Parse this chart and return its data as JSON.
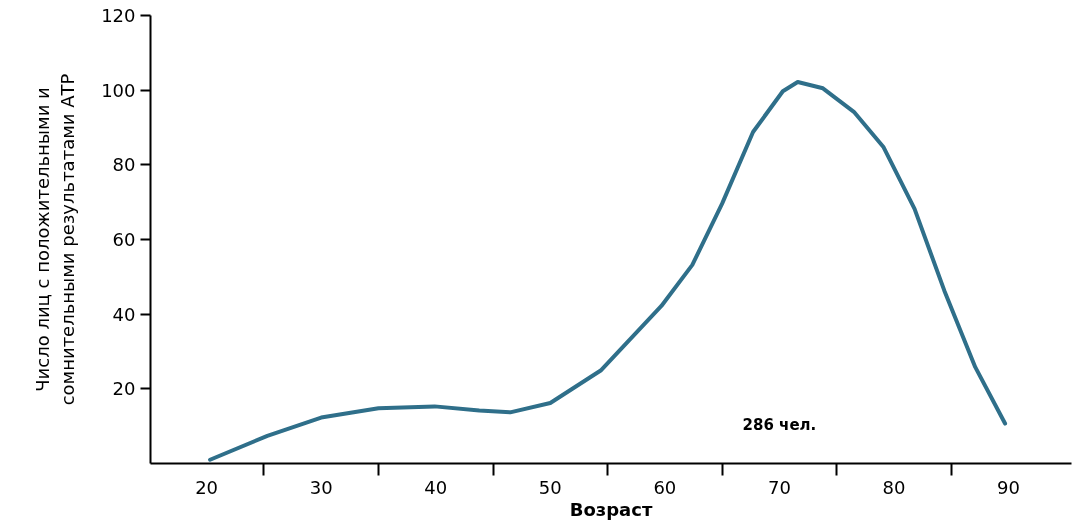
{
  "chart_data": {
    "type": "line",
    "xlabel": "Возраст",
    "ylabel": "Число лиц с положительными и\nсомнительными результатами АТР",
    "x": [
      20.3,
      25.3,
      30,
      35,
      39.9,
      43.8,
      46.5,
      50,
      54.4,
      59.7,
      62.4,
      65,
      67.7,
      70.3,
      71.6,
      73.8,
      76.5,
      79.1,
      81.8,
      84.4,
      87.1,
      89.7
    ],
    "series": [
      {
        "color": "#2f6f8a",
        "values": [
          1,
          7.4,
          12.3,
          14.8,
          15.3,
          14.2,
          13.7,
          16.2,
          24.9,
          42.2,
          53.2,
          69.6,
          88.8,
          99.7,
          102.2,
          100.5,
          94.2,
          84.7,
          68.2,
          46.3,
          25.8,
          10.7
        ]
      }
    ],
    "xlim": [
      15.1,
      95.5
    ],
    "ylim": [
      0,
      120
    ],
    "xticks": [
      20,
      {
        "value": 25,
        "label": null
      },
      30,
      {
        "value": 35,
        "label": null
      },
      40,
      {
        "value": 45,
        "label": null
      },
      50,
      {
        "value": 55,
        "label": null
      },
      60,
      {
        "value": 65,
        "label": null
      },
      70,
      {
        "value": 75,
        "label": null
      },
      80,
      {
        "value": 85,
        "label": null
      },
      90
    ],
    "yticks": [
      20,
      40,
      60,
      80,
      100,
      120
    ],
    "annotations": [
      "286 чел."
    ],
    "grid": false,
    "marker": "none",
    "line_style": "solid"
  }
}
